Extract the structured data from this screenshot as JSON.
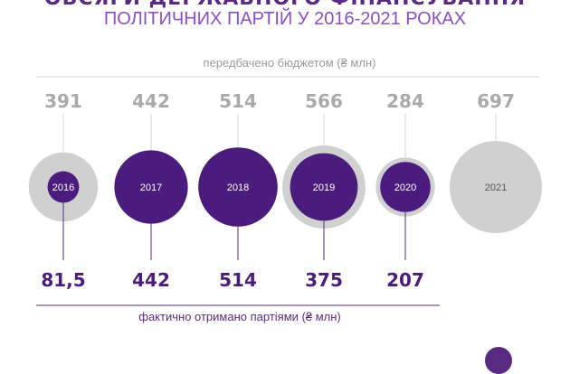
{
  "title_line1": "ОБСЯГИ ДЕРЖАВНОГО ФІНАНСУВАННЯ",
  "title_line2": "ПОЛІТИЧНИХ ПАРТІЙ У 2016-2021 РОКАХ",
  "budget_caption": "передбачено бюджетом (₴ млн)",
  "actual_caption": "фактично отримано партіями (₴ млн)",
  "colors": {
    "budget": "#d0d0d0",
    "actual": "#4b1c7d",
    "budget_text": "#aaaaaa",
    "actual_text": "#4b1c7d",
    "line_budget": "#d6d6d6",
    "line_actual": "#5a2a83"
  },
  "chart_data": {
    "type": "bubble",
    "categories": [
      "2016",
      "2017",
      "2018",
      "2019",
      "2020",
      "2021"
    ],
    "series": [
      {
        "name": "передбачено бюджетом (₴ млн)",
        "values": [
          391,
          442,
          514,
          566,
          284,
          697
        ],
        "labels": [
          "391",
          "442",
          "514",
          "566",
          "284",
          "697"
        ]
      },
      {
        "name": "фактично отримано партіями (₴ млн)",
        "values": [
          81.5,
          442,
          514,
          375,
          207,
          null
        ],
        "labels": [
          "81,5",
          "442",
          "514",
          "375",
          "207",
          ""
        ]
      }
    ]
  }
}
